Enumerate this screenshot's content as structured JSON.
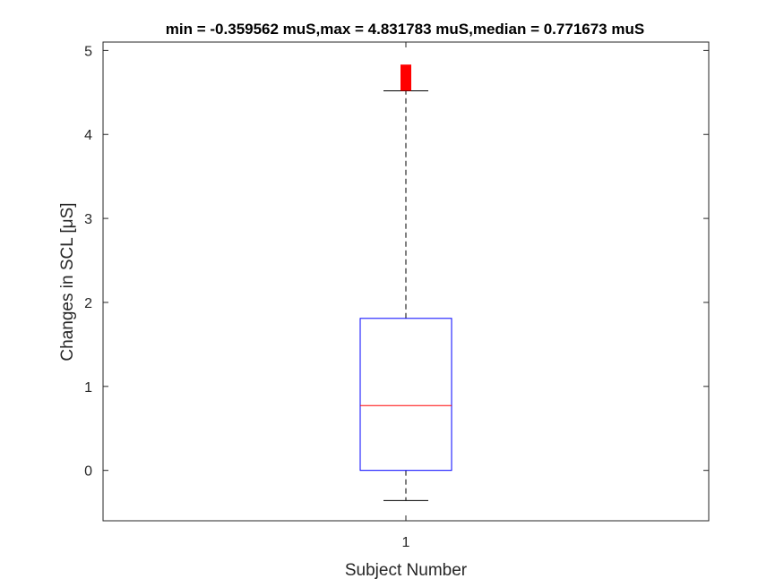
{
  "chart_data": {
    "type": "boxplot",
    "title": "min = -0.359562 muS,max = 4.831783 muS,median = 0.771673 muS",
    "xlabel": "Subject Number",
    "ylabel": "Changes in SCL [μS]",
    "categories": [
      "1"
    ],
    "ylim": [
      -0.6,
      5.1
    ],
    "yticks": [
      0,
      1,
      2,
      3,
      4,
      5
    ],
    "grid": false,
    "boxes": [
      {
        "category": "1",
        "lower_whisker": -0.359562,
        "q1": 0.0,
        "median": 0.771673,
        "q3": 1.81,
        "upper_whisker": 4.52,
        "outliers_range": [
          4.52,
          4.831783
        ]
      }
    ],
    "colors": {
      "box": "#0000ff",
      "median": "#ff0000",
      "whisker": "#000000",
      "outliers": "#ff0000",
      "axes": "#262626"
    }
  }
}
